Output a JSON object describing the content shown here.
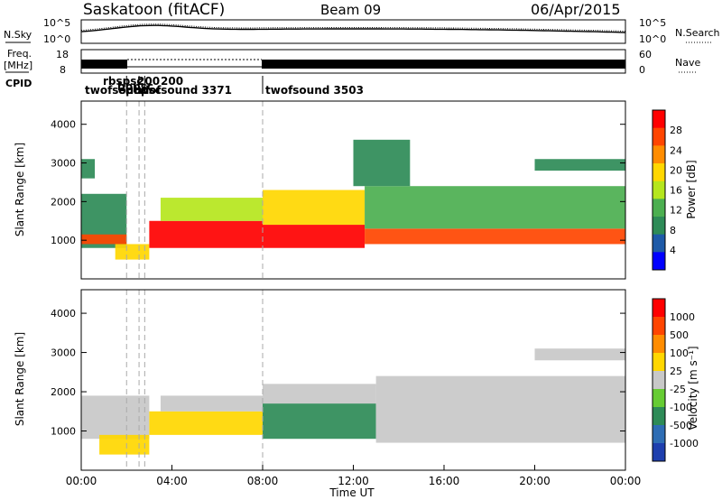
{
  "header": {
    "station": "Saskatoon (fitACF)",
    "beam": "Beam 09",
    "date": "06/Apr/2015"
  },
  "sky_panel": {
    "left_label": "N.Sky",
    "right_label": "N.Search",
    "left_ticks": [
      "10^5",
      "10^0"
    ],
    "right_ticks": [
      "10^5",
      "10^0"
    ]
  },
  "freq_panel": {
    "left_label_line1": "Freq.",
    "left_label_line2": "[MHz]",
    "right_label": "Nave",
    "left_ticks": [
      "18",
      "8"
    ],
    "right_ticks": [
      "60",
      "0"
    ]
  },
  "cpid": {
    "label": "CPID",
    "entries": [
      {
        "text": "twofsound",
        "t": 0.1
      },
      {
        "text": "rbspsc",
        "t": 2.0
      },
      {
        "text": "200",
        "t": 3.7
      },
      {
        "text": "200",
        "t": 4.4
      },
      {
        "text": "bppsc",
        "t": 2.6
      },
      {
        "text": "epopsc",
        "t": 2.6
      },
      {
        "text": "twofsound  3371",
        "t": 3.3
      },
      {
        "text": "twofsound  3503",
        "t": 8.1
      }
    ],
    "markers": [
      2.0,
      2.55,
      2.8,
      8.0
    ]
  },
  "chart_data": [
    {
      "type": "heatmap",
      "name": "power",
      "ylabel": "Slant Range [km]",
      "xlim": [
        0,
        24
      ],
      "ylim": [
        0,
        4600
      ],
      "yticks": [
        "1000",
        "2000",
        "3000",
        "4000"
      ],
      "colorbar": {
        "label": "Power [dB]",
        "ticks": [
          "28",
          "24",
          "20",
          "16",
          "12",
          "8",
          "4"
        ],
        "range": [
          0,
          32
        ],
        "colors": [
          "#0000ff",
          "#1e5aa8",
          "#2e8b57",
          "#4caf50",
          "#b5e61d",
          "#ffd700",
          "#ff8c00",
          "#ff4500",
          "#ff0000"
        ]
      },
      "regions": [
        {
          "t0": 0.0,
          "t1": 2.0,
          "r0": 800,
          "r1": 2200,
          "v": 10
        },
        {
          "t0": 0.0,
          "t1": 2.0,
          "r0": 900,
          "r1": 1150,
          "v": 26
        },
        {
          "t0": 0.0,
          "t1": 0.6,
          "r0": 2600,
          "r1": 3100,
          "v": 8
        },
        {
          "t0": 1.5,
          "t1": 3.0,
          "r0": 500,
          "r1": 900,
          "v": 20
        },
        {
          "t0": 3.0,
          "t1": 8.0,
          "r0": 800,
          "r1": 1500,
          "v": 29
        },
        {
          "t0": 3.5,
          "t1": 8.0,
          "r0": 1500,
          "r1": 2100,
          "v": 16
        },
        {
          "t0": 8.0,
          "t1": 12.5,
          "r0": 800,
          "r1": 1400,
          "v": 29
        },
        {
          "t0": 8.0,
          "t1": 12.5,
          "r0": 1400,
          "r1": 2300,
          "v": 18
        },
        {
          "t0": 12.5,
          "t1": 24.0,
          "r0": 900,
          "r1": 1300,
          "v": 28
        },
        {
          "t0": 12.5,
          "t1": 24.0,
          "r0": 1300,
          "r1": 2400,
          "v": 14
        },
        {
          "t0": 12.0,
          "t1": 14.5,
          "r0": 2400,
          "r1": 3600,
          "v": 10
        },
        {
          "t0": 20.0,
          "t1": 24.0,
          "r0": 2800,
          "r1": 3100,
          "v": 8
        }
      ]
    },
    {
      "type": "heatmap",
      "name": "velocity",
      "ylabel": "Slant Range [km]",
      "xlim": [
        0,
        24
      ],
      "ylim": [
        0,
        4600
      ],
      "yticks": [
        "1000",
        "2000",
        "3000",
        "4000"
      ],
      "colorbar": {
        "label": "Velocity [m s⁻¹]",
        "ticks": [
          "1000",
          "500",
          "100",
          "25",
          "-25",
          "-100",
          "-500",
          "-1000"
        ],
        "range": [
          -1200,
          1200
        ],
        "colors": [
          "#1e3fae",
          "#2e6db4",
          "#2e8b57",
          "#66cc33",
          "#c8c8c8",
          "#ffd700",
          "#ff8c00",
          "#ff4500",
          "#ff0000"
        ]
      },
      "regions": [
        {
          "t0": 0.0,
          "t1": 3.0,
          "r0": 800,
          "r1": 1900,
          "v": 0
        },
        {
          "t0": 0.8,
          "t1": 3.0,
          "r0": 400,
          "r1": 900,
          "v": 300
        },
        {
          "t0": 3.0,
          "t1": 8.0,
          "r0": 900,
          "r1": 1500,
          "v": 200
        },
        {
          "t0": 3.5,
          "t1": 8.0,
          "r0": 1500,
          "r1": 1900,
          "v": 0
        },
        {
          "t0": 8.0,
          "t1": 13.0,
          "r0": 800,
          "r1": 1700,
          "v": -500
        },
        {
          "t0": 8.0,
          "t1": 13.0,
          "r0": 1700,
          "r1": 2200,
          "v": 0
        },
        {
          "t0": 13.0,
          "t1": 24.0,
          "r0": 700,
          "r1": 2400,
          "v": 0
        },
        {
          "t0": 20.0,
          "t1": 24.0,
          "r0": 2800,
          "r1": 3100,
          "v": 0
        }
      ]
    }
  ],
  "x_axis": {
    "ticks": [
      "00:00",
      "04:00",
      "08:00",
      "12:00",
      "16:00",
      "20:00",
      "00:00"
    ],
    "label": "Time UT"
  }
}
